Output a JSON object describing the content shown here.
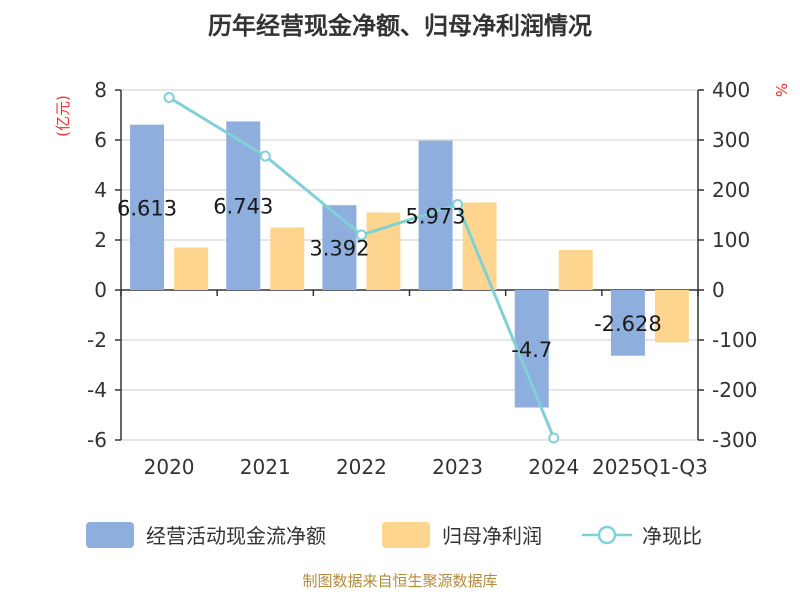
{
  "chart_data": {
    "type": "bar",
    "title": "历年经营现金净额、归母净利润情况",
    "categories": [
      "2020",
      "2021",
      "2022",
      "2023",
      "2024",
      "2025Q1-Q3"
    ],
    "series": [
      {
        "name": "经营活动现金流净额",
        "kind": "bar",
        "axis": "left",
        "color": "#8eaedd",
        "values": [
          6.613,
          6.743,
          3.392,
          5.973,
          -4.7,
          -2.628
        ],
        "labels": [
          "6.613",
          "6.743",
          "3.392",
          "5.973",
          "-4.7",
          "-2.628"
        ]
      },
      {
        "name": "归母净利润",
        "kind": "bar",
        "axis": "left",
        "color": "#fdd58f",
        "values": [
          1.7,
          2.5,
          3.1,
          3.5,
          1.6,
          -2.1
        ]
      },
      {
        "name": "净现比",
        "kind": "line",
        "axis": "right",
        "color": "#80d0d8",
        "values": [
          385,
          268,
          110,
          171,
          -296,
          null
        ]
      }
    ],
    "y_left": {
      "unit": "(亿元)",
      "min": -6,
      "max": 8,
      "ticks": [
        "8",
        "6",
        "4",
        "2",
        "0",
        "-2",
        "-4",
        "-6"
      ]
    },
    "y_right": {
      "unit": "%",
      "min": -300,
      "max": 400,
      "ticks": [
        "400",
        "300",
        "200",
        "100",
        "0",
        "-100",
        "-200",
        "-300"
      ]
    },
    "legend_position": "bottom",
    "grid": true
  },
  "source": "制图数据来自恒生聚源数据库"
}
